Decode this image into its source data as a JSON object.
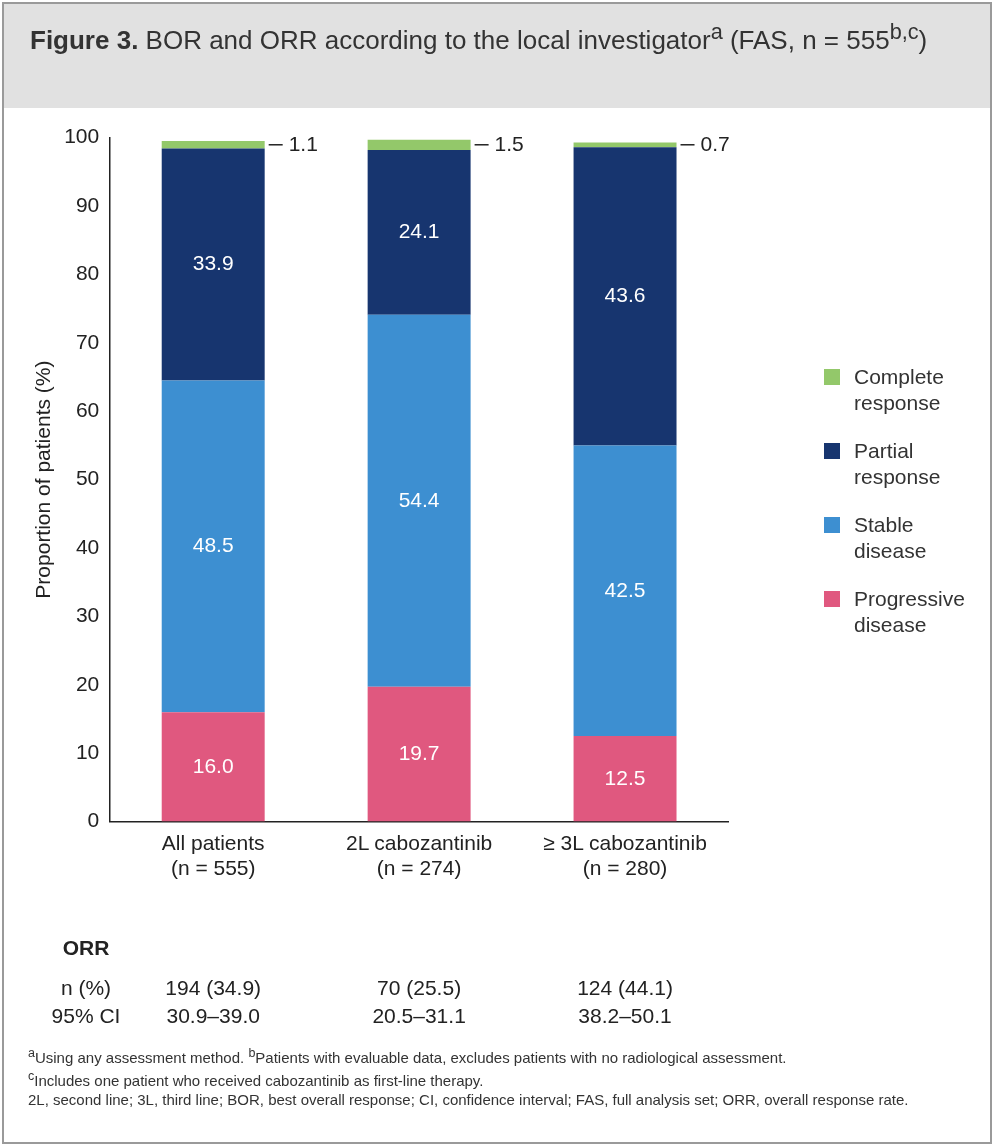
{
  "chart_data": {
    "type": "bar",
    "stacked": true,
    "title": "Figure 3. BOR and ORR according to the local investigator$^{a}$ (FAS, n = 555$^{b,c}$)",
    "ylabel": "Proportion of patients (%)",
    "categories": [
      "All patients\n(n = 555)",
      "2L cabozantinib\n(n = 274)",
      "≥ 3L cabozantinib\n(n = 280)"
    ],
    "series": [
      {
        "name": "Progressive disease",
        "color": "#e0587f",
        "values": [
          16.0,
          19.7,
          12.5
        ],
        "value_labels": [
          "16.0",
          "19.7",
          "12.5"
        ]
      },
      {
        "name": "Stable disease",
        "color": "#3d8fd1",
        "values": [
          48.5,
          54.4,
          42.5
        ],
        "value_labels": [
          "48.5",
          "54.4",
          "42.5"
        ]
      },
      {
        "name": "Partial response",
        "color": "#17356f",
        "values": [
          33.9,
          24.1,
          43.6
        ],
        "value_labels": [
          "33.9",
          "24.1",
          "43.6"
        ]
      },
      {
        "name": "Complete response",
        "color": "#93c86a",
        "values": [
          1.1,
          1.5,
          0.7
        ],
        "value_labels": [
          "1.1",
          "1.5",
          "0.7"
        ]
      }
    ],
    "ylim": [
      0,
      100
    ],
    "yticks": [
      0,
      10,
      20,
      30,
      40,
      50,
      60,
      70,
      80,
      90,
      100
    ],
    "grid": false,
    "legend": "right",
    "annotations": [
      "ORR",
      "n (%)",
      "194 (34.9)",
      "70 (25.5)",
      "124 (44.1)",
      "95% CI",
      "30.9–39.0",
      "20.5–31.1",
      "38.2–50.1",
      "$^{a}$Using any assessment method. $^{b}$Patients with evaluable data, excludes patients with no radiological assessment.",
      "$^{c}$Includes one patient who received cabozantinib as first-line therapy.",
      "2L, second line; 3L, third line; BOR, best overall response; CI, confidence interval; FAS, full analysis set; ORR, overall response rate."
    ]
  }
}
